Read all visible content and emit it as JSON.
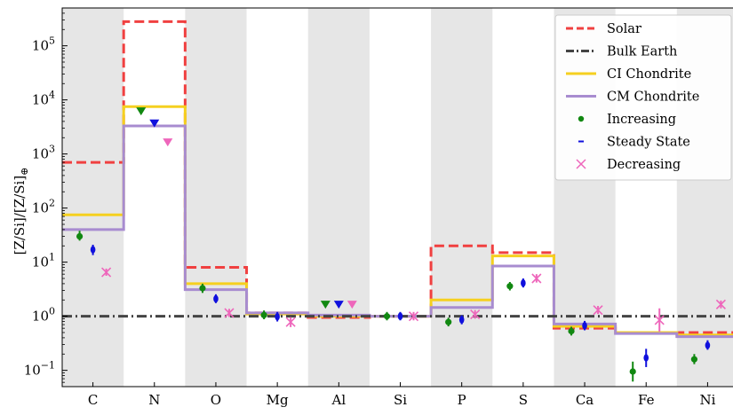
{
  "chart_data": {
    "type": "line",
    "ylabel": "[Z/Si]/[Z/Si]",
    "ylabel_sub": "⊕",
    "yscale": "log",
    "ylim": [
      0.05,
      500000
    ],
    "yticks": [
      {
        "value": 0.1,
        "base": "10",
        "exp": "−1"
      },
      {
        "value": 1,
        "base": "10",
        "exp": "0"
      },
      {
        "value": 10,
        "base": "10",
        "exp": "1"
      },
      {
        "value": 100,
        "base": "10",
        "exp": "2"
      },
      {
        "value": 1000,
        "base": "10",
        "exp": "3"
      },
      {
        "value": 10000,
        "base": "10",
        "exp": "4"
      },
      {
        "value": 100000,
        "base": "10",
        "exp": "5"
      }
    ],
    "categories": [
      "C",
      "N",
      "O",
      "Mg",
      "Al",
      "Si",
      "P",
      "S",
      "Ca",
      "Fe",
      "Ni"
    ],
    "shaded_bands": [
      true,
      false,
      true,
      false,
      true,
      false,
      true,
      false,
      true,
      false,
      true
    ],
    "step_series": [
      {
        "name": "Solar",
        "color": "#f04040",
        "style": "dashed",
        "values": [
          700,
          280000,
          8,
          1.15,
          0.95,
          1.0,
          20,
          15,
          0.6,
          0.5,
          0.5
        ]
      },
      {
        "name": "Bulk Earth",
        "color": "#444444",
        "style": "dashdot",
        "values": [
          1,
          1,
          1,
          1,
          1,
          1,
          1,
          1,
          1,
          1,
          1
        ]
      },
      {
        "name": "CI Chondrite",
        "color": "#f5d020",
        "style": "solid",
        "values": [
          75,
          7500,
          4.0,
          1.1,
          1.0,
          1.0,
          2.0,
          13,
          0.65,
          0.5,
          0.45
        ]
      },
      {
        "name": "CM Chondrite",
        "color": "#a88cd0",
        "style": "solid",
        "values": [
          40,
          3300,
          3.1,
          1.15,
          1.05,
          1.0,
          1.45,
          8.5,
          0.72,
          0.48,
          0.42
        ]
      }
    ],
    "point_series": [
      {
        "name": "Increasing",
        "color": "#118811",
        "marker": "dot",
        "points": [
          {
            "cat": "C",
            "y": 30,
            "lo": 25,
            "hi": 38
          },
          {
            "cat": "N",
            "y": 6000,
            "upper_limit": true
          },
          {
            "cat": "O",
            "y": 3.3,
            "lo": 2.7,
            "hi": 4.0
          },
          {
            "cat": "Mg",
            "y": 1.05,
            "lo": 0.88,
            "hi": 1.28
          },
          {
            "cat": "Al",
            "y": 1.6,
            "upper_limit": true
          },
          {
            "cat": "Si",
            "y": 1.0,
            "lo": 0.84,
            "hi": 1.2
          },
          {
            "cat": "P",
            "y": 0.78,
            "lo": 0.65,
            "hi": 0.94
          },
          {
            "cat": "S",
            "y": 3.6,
            "lo": 3.0,
            "hi": 4.3
          },
          {
            "cat": "Ca",
            "y": 0.53,
            "lo": 0.44,
            "hi": 0.64
          },
          {
            "cat": "Fe",
            "y": 0.095,
            "lo": 0.062,
            "hi": 0.145
          },
          {
            "cat": "Ni",
            "y": 0.16,
            "lo": 0.13,
            "hi": 0.2
          }
        ]
      },
      {
        "name": "Steady State",
        "color": "#1010dd",
        "marker": "dash",
        "points": [
          {
            "cat": "C",
            "y": 17,
            "lo": 13.5,
            "hi": 21
          },
          {
            "cat": "N",
            "y": 3600,
            "upper_limit": true
          },
          {
            "cat": "O",
            "y": 2.1,
            "lo": 1.75,
            "hi": 2.55
          },
          {
            "cat": "Mg",
            "y": 0.98,
            "lo": 0.8,
            "hi": 1.2
          },
          {
            "cat": "Al",
            "y": 1.6,
            "upper_limit": true
          },
          {
            "cat": "Si",
            "y": 1.0,
            "lo": 0.84,
            "hi": 1.2
          },
          {
            "cat": "P",
            "y": 0.86,
            "lo": 0.71,
            "hi": 1.04
          },
          {
            "cat": "S",
            "y": 4.1,
            "lo": 3.4,
            "hi": 5.0
          },
          {
            "cat": "Ca",
            "y": 0.67,
            "lo": 0.55,
            "hi": 0.82
          },
          {
            "cat": "Fe",
            "y": 0.17,
            "lo": 0.115,
            "hi": 0.25
          },
          {
            "cat": "Ni",
            "y": 0.29,
            "lo": 0.24,
            "hi": 0.36
          }
        ]
      },
      {
        "name": "Decreasing",
        "color": "#ee66bb",
        "marker": "x",
        "points": [
          {
            "cat": "C",
            "y": 6.5,
            "lo": 5.6,
            "hi": 7.6
          },
          {
            "cat": "N",
            "y": 1600,
            "upper_limit": true
          },
          {
            "cat": "O",
            "y": 1.15,
            "lo": 0.97,
            "hi": 1.37
          },
          {
            "cat": "Mg",
            "y": 0.78,
            "lo": 0.63,
            "hi": 0.96
          },
          {
            "cat": "Al",
            "y": 1.6,
            "upper_limit": true
          },
          {
            "cat": "Si",
            "y": 1.0,
            "lo": 0.84,
            "hi": 1.2
          },
          {
            "cat": "P",
            "y": 1.08,
            "lo": 0.9,
            "hi": 1.3
          },
          {
            "cat": "S",
            "y": 5.0,
            "lo": 4.2,
            "hi": 6.0
          },
          {
            "cat": "Ca",
            "y": 1.3,
            "lo": 1.1,
            "hi": 1.55
          },
          {
            "cat": "Fe",
            "y": 0.85,
            "lo": 0.52,
            "hi": 1.4
          },
          {
            "cat": "Ni",
            "y": 1.65,
            "lo": 1.4,
            "hi": 1.95
          }
        ]
      }
    ],
    "legend": {
      "position": "top-right",
      "entries": [
        "Solar",
        "Bulk Earth",
        "CI Chondrite",
        "CM Chondrite",
        "Increasing",
        "Steady State",
        "Decreasing"
      ]
    },
    "grid": false
  }
}
